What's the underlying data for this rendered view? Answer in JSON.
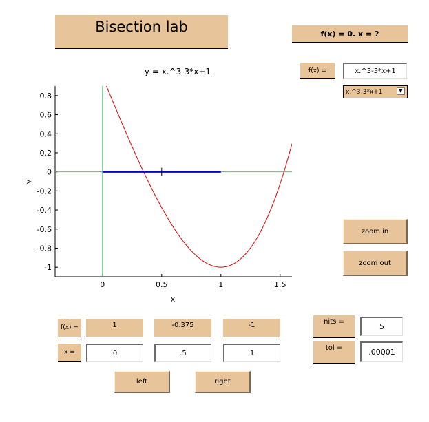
{
  "title": "Bisection lab",
  "question_banner": "f(x) = 0.  x = ?",
  "function_label": "f(x) =",
  "function_input": "x.^3-3*x+1",
  "function_select": "x.^3-3*x+1",
  "plot_title": "y = x.^3-3*x+1",
  "chart_data": {
    "type": "line",
    "title": "y = x.^3-3*x+1",
    "xlabel": "x",
    "ylabel": "y",
    "xlim": [
      -0.4,
      1.6
    ],
    "ylim": [
      -1.1,
      0.9
    ],
    "x_ticks": [
      "0",
      "0.5",
      "1",
      "1.5"
    ],
    "y_ticks": [
      "0.8",
      "0.6",
      "0.4",
      "0.2",
      "0",
      "-0.2",
      "-0.4",
      "-0.6",
      "-0.8",
      "-1"
    ],
    "series": [
      {
        "function": "x.^3-3*x+1",
        "color": "#dd0000"
      }
    ],
    "axes_lines_color": "#44cc66",
    "bracket": {
      "left": 0,
      "right": 1,
      "mid": 0.5,
      "color": "#0000dd"
    }
  },
  "zoom_in": "zoom in",
  "zoom_out": "zoom out",
  "fx_label": "f(x) =",
  "x_label": "x =",
  "fx_values": [
    "1",
    "-0.375",
    "-1"
  ],
  "x_values": [
    "0",
    ".5",
    "1"
  ],
  "nits_label": "nits =",
  "nits_value": "5",
  "tol_label": "tol =",
  "tol_value": ".00001",
  "left_button": "left",
  "right_button": "right",
  "colors": {
    "panel": "#e8c49a",
    "curve": "#dd0000",
    "bracket": "#0000dd",
    "axes": "#44cc66"
  }
}
